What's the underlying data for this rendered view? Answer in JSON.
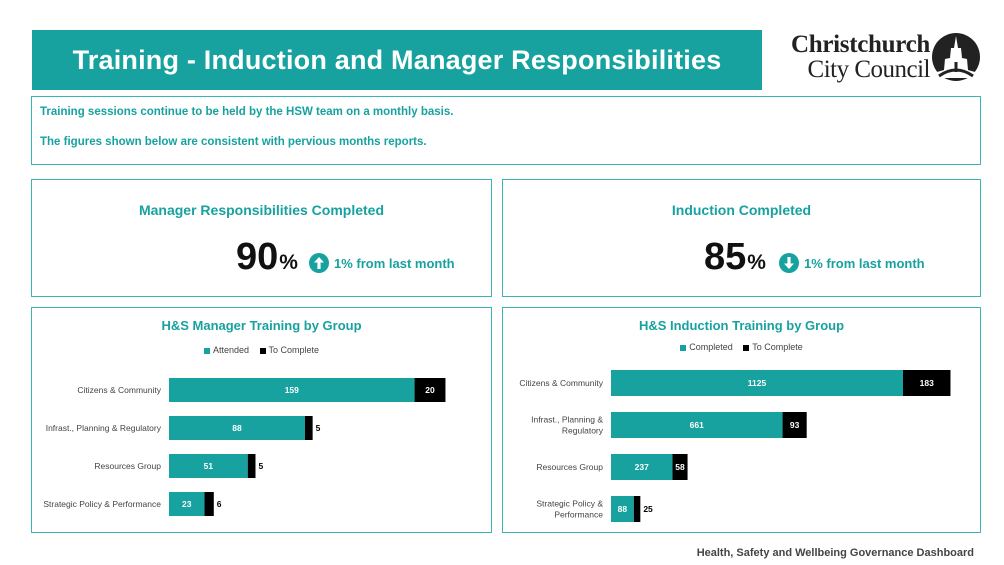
{
  "page_title": "Training - Induction and Manager Responsibilities",
  "logo": {
    "line1": "Christchurch",
    "line2": "City Council",
    "icon": "cathedral-icon"
  },
  "notes": [
    "Training sessions continue to be held by the HSW team on a monthly basis.",
    "The figures shown below are consistent with pervious months reports."
  ],
  "kpis": {
    "manager": {
      "title": "Manager Responsibilities Completed",
      "value": "90",
      "unit": "%",
      "change": "1% from last month",
      "direction": "up",
      "icon": "arrow-up-circle-icon"
    },
    "induction": {
      "title": "Induction Completed",
      "value": "85",
      "unit": "%",
      "change": "1% from last month",
      "direction": "down",
      "icon": "arrow-down-circle-icon"
    }
  },
  "colors": {
    "teal": "#17a2a0",
    "black": "#000000"
  },
  "chart_data": [
    {
      "type": "bar",
      "orientation": "horizontal",
      "stacked": true,
      "title": "H&S Manager Training by Group",
      "categories": [
        "Citizens & Community",
        "Infrast., Planning & Regulatory",
        "Resources Group",
        "Strategic Policy & Performance"
      ],
      "category_lines": [
        [
          "Citizens & Community"
        ],
        [
          "Infrast., Planning & Regulatory"
        ],
        [
          "Resources Group"
        ],
        [
          "Strategic Policy & Performance"
        ]
      ],
      "series": [
        {
          "name": "Attended",
          "color": "#17a2a0",
          "values": [
            159,
            88,
            51,
            23
          ]
        },
        {
          "name": "To Complete",
          "color": "#000000",
          "values": [
            20,
            5,
            5,
            6
          ]
        }
      ],
      "xlim": [
        0,
        180
      ],
      "legend_position": "top"
    },
    {
      "type": "bar",
      "orientation": "horizontal",
      "stacked": true,
      "title": "H&S Induction Training by Group",
      "categories": [
        "Citizens & Community",
        "Infrast., Planning & Regulatory",
        "Resources Group",
        "Strategic Policy & Performance"
      ],
      "category_lines": [
        [
          "Citizens & Community"
        ],
        [
          "Infrast., Planning &",
          "Regulatory"
        ],
        [
          "Resources Group"
        ],
        [
          "Strategic Policy &",
          "Performance"
        ]
      ],
      "series": [
        {
          "name": "Completed",
          "color": "#17a2a0",
          "values": [
            1125,
            661,
            237,
            88
          ]
        },
        {
          "name": "To Complete",
          "color": "#000000",
          "values": [
            183,
            93,
            58,
            25
          ]
        }
      ],
      "xlim": [
        0,
        1310
      ],
      "legend_position": "top"
    }
  ],
  "footer": "Health, Safety and Wellbeing Governance Dashboard"
}
